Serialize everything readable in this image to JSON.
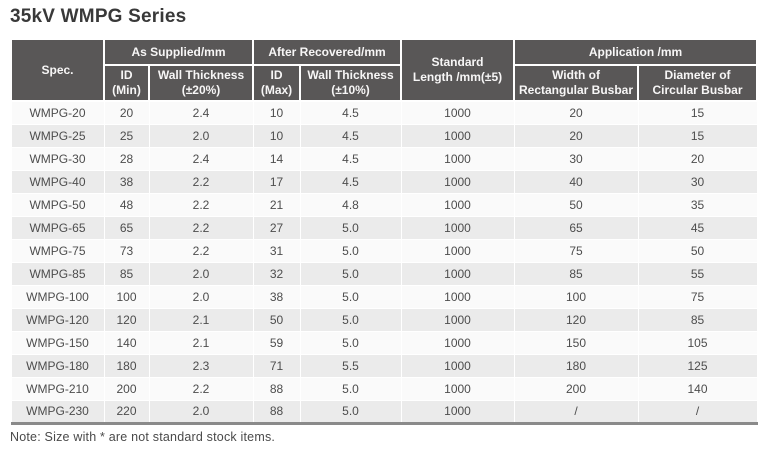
{
  "title": "35kV WMPG Series",
  "note": "Note: Size with * are not standard stock items.",
  "colors": {
    "header_bg": "#595757",
    "header_text": "#f7f6f6",
    "row_odd_bg": "#fafafa",
    "row_even_bg": "#ebebeb",
    "body_text": "#4d4d4d",
    "bottom_border": "#8a8a8a"
  },
  "table": {
    "groups": {
      "spec": "Spec.",
      "as_supplied": "As Supplied/mm",
      "after_recovered": "After Recovered/mm",
      "standard_length": [
        "Standard",
        "Length /mm(±5)"
      ],
      "application": "Application /mm"
    },
    "subheaders": {
      "id_min": [
        "ID",
        "(Min)"
      ],
      "wall_thickness_20": [
        "Wall Thickness",
        "(±20%)"
      ],
      "id_max": [
        "ID",
        "(Max)"
      ],
      "wall_thickness_10": [
        "Wall Thickness",
        "(±10%)"
      ],
      "width_rect_busbar": [
        "Width of",
        "Rectangular Busbar"
      ],
      "dia_circ_busbar": [
        "Diameter of",
        "Circular Busbar"
      ]
    },
    "col_keys": [
      "spec",
      "id-min",
      "wall-thickness-20",
      "id-max",
      "wall-thickness-10",
      "standard-length",
      "width-rect-busbar",
      "dia-circ-busbar"
    ],
    "rows": [
      [
        "WMPG-20",
        "20",
        "2.4",
        "10",
        "4.5",
        "1000",
        "20",
        "15"
      ],
      [
        "WMPG-25",
        "25",
        "2.0",
        "10",
        "4.5",
        "1000",
        "20",
        "15"
      ],
      [
        "WMPG-30",
        "28",
        "2.4",
        "14",
        "4.5",
        "1000",
        "30",
        "20"
      ],
      [
        "WMPG-40",
        "38",
        "2.2",
        "17",
        "4.5",
        "1000",
        "40",
        "30"
      ],
      [
        "WMPG-50",
        "48",
        "2.2",
        "21",
        "4.8",
        "1000",
        "50",
        "35"
      ],
      [
        "WMPG-65",
        "65",
        "2.2",
        "27",
        "5.0",
        "1000",
        "65",
        "45"
      ],
      [
        "WMPG-75",
        "73",
        "2.2",
        "31",
        "5.0",
        "1000",
        "75",
        "50"
      ],
      [
        "WMPG-85",
        "85",
        "2.0",
        "32",
        "5.0",
        "1000",
        "85",
        "55"
      ],
      [
        "WMPG-100",
        "100",
        "2.0",
        "38",
        "5.0",
        "1000",
        "100",
        "75"
      ],
      [
        "WMPG-120",
        "120",
        "2.1",
        "50",
        "5.0",
        "1000",
        "120",
        "85"
      ],
      [
        "WMPG-150",
        "140",
        "2.1",
        "59",
        "5.0",
        "1000",
        "150",
        "105"
      ],
      [
        "WMPG-180",
        "180",
        "2.3",
        "71",
        "5.5",
        "1000",
        "180",
        "125"
      ],
      [
        "WMPG-210",
        "200",
        "2.2",
        "88",
        "5.0",
        "1000",
        "200",
        "140"
      ],
      [
        "WMPG-230",
        "220",
        "2.0",
        "88",
        "5.0",
        "1000",
        "/",
        "/"
      ]
    ]
  }
}
